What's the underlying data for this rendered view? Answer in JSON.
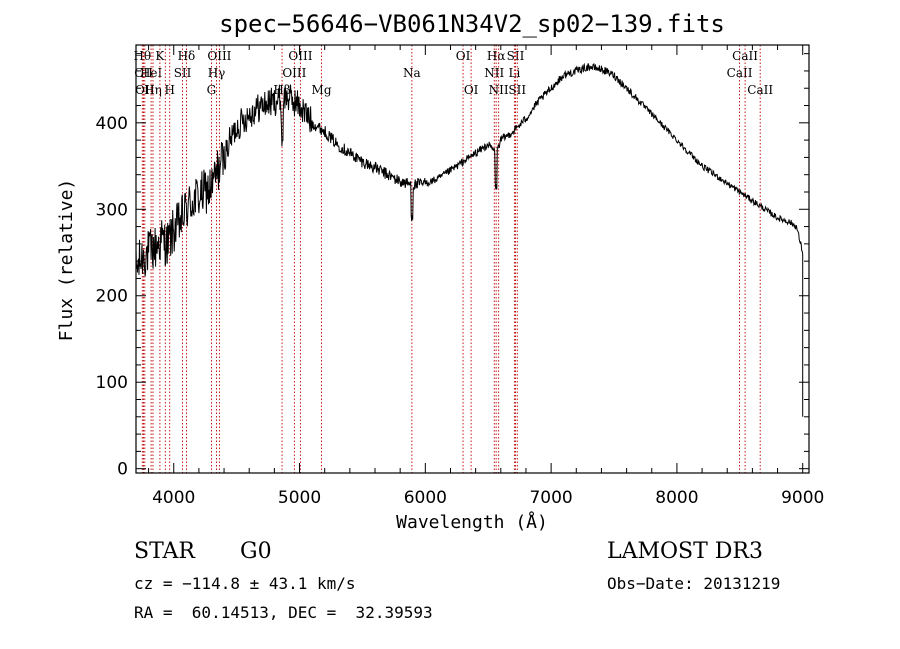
{
  "chart_data": {
    "type": "line",
    "title": "spec−56646−VB061N34V2_sp02−139.fits",
    "xlabel": "Wavelength (Å)",
    "ylabel": "Flux (relative)",
    "xlim": [
      3700,
      9050
    ],
    "ylim": [
      -5,
      490
    ],
    "xticks": [
      4000,
      5000,
      6000,
      7000,
      8000,
      9000
    ],
    "yticks": [
      0,
      100,
      200,
      300,
      400
    ],
    "line_color": "#000000",
    "marker_color": "#c00000",
    "spectrum": {
      "name": "flux",
      "x": [
        3700,
        3750,
        3800,
        3850,
        3900,
        3950,
        4000,
        4050,
        4100,
        4150,
        4200,
        4250,
        4300,
        4350,
        4400,
        4450,
        4500,
        4600,
        4700,
        4800,
        4900,
        5000,
        5100,
        5200,
        5300,
        5400,
        5500,
        5600,
        5700,
        5800,
        5900,
        6000,
        6100,
        6200,
        6300,
        6400,
        6500,
        6563,
        6600,
        6700,
        6800,
        6900,
        7000,
        7100,
        7200,
        7300,
        7400,
        7500,
        7600,
        7700,
        7800,
        7900,
        8000,
        8100,
        8200,
        8300,
        8400,
        8500,
        8600,
        8700,
        8800,
        8900,
        8950,
        9000
      ],
      "y": [
        230,
        245,
        250,
        255,
        265,
        260,
        275,
        285,
        300,
        310,
        315,
        320,
        325,
        345,
        360,
        380,
        395,
        410,
        420,
        425,
        430,
        420,
        400,
        390,
        375,
        365,
        355,
        348,
        340,
        332,
        328,
        330,
        335,
        345,
        355,
        365,
        375,
        365,
        380,
        390,
        405,
        425,
        440,
        455,
        460,
        465,
        462,
        455,
        440,
        425,
        410,
        395,
        380,
        365,
        350,
        340,
        330,
        320,
        310,
        300,
        290,
        285,
        280,
        250
      ]
    },
    "lines": [
      {
        "wave": 3750,
        "label": "Hθ",
        "row": 1
      },
      {
        "wave": 3760,
        "label": "CII",
        "row": 2
      },
      {
        "wave": 3770,
        "label": "OII",
        "row": 3
      },
      {
        "wave": 3820,
        "label": "HeI",
        "row": 2
      },
      {
        "wave": 3835,
        "label": "Hη",
        "row": 3
      },
      {
        "wave": 3890,
        "label": "K",
        "row": 1
      },
      {
        "wave": 3933,
        "label": "",
        "row": 0
      },
      {
        "wave": 3968,
        "label": "H",
        "row": 3
      },
      {
        "wave": 4070,
        "label": "SII",
        "row": 2
      },
      {
        "wave": 4101,
        "label": "Hδ",
        "row": 1
      },
      {
        "wave": 4300,
        "label": "G",
        "row": 3
      },
      {
        "wave": 4340,
        "label": "Hγ",
        "row": 2
      },
      {
        "wave": 4363,
        "label": "OIII",
        "row": 1
      },
      {
        "wave": 4861,
        "label": "Hβ",
        "row": 3
      },
      {
        "wave": 4959,
        "label": "OIII",
        "row": 2
      },
      {
        "wave": 5007,
        "label": "OIII",
        "row": 1
      },
      {
        "wave": 5175,
        "label": "Mg",
        "row": 3
      },
      {
        "wave": 5893,
        "label": "Na",
        "row": 2
      },
      {
        "wave": 6300,
        "label": "OI",
        "row": 1
      },
      {
        "wave": 6364,
        "label": "OI",
        "row": 3
      },
      {
        "wave": 6548,
        "label": "NII",
        "row": 2
      },
      {
        "wave": 6563,
        "label": "Hα",
        "row": 1
      },
      {
        "wave": 6583,
        "label": "NII",
        "row": 3
      },
      {
        "wave": 6708,
        "label": "Li",
        "row": 2
      },
      {
        "wave": 6717,
        "label": "SII",
        "row": 1
      },
      {
        "wave": 6731,
        "label": "SII",
        "row": 3
      },
      {
        "wave": 8498,
        "label": "CaII",
        "row": 2
      },
      {
        "wave": 8542,
        "label": "CaII",
        "row": 1
      },
      {
        "wave": 8662,
        "label": "CaII",
        "row": 3
      }
    ]
  },
  "info": {
    "class": "STAR",
    "subclass": "G0",
    "survey": "LAMOST DR3",
    "cz": "cz = −114.8 ± 43.1 km/s",
    "obs_date": "Obs−Date: 20131219",
    "radec": "RA =  60.14513, DEC =  32.39593"
  }
}
